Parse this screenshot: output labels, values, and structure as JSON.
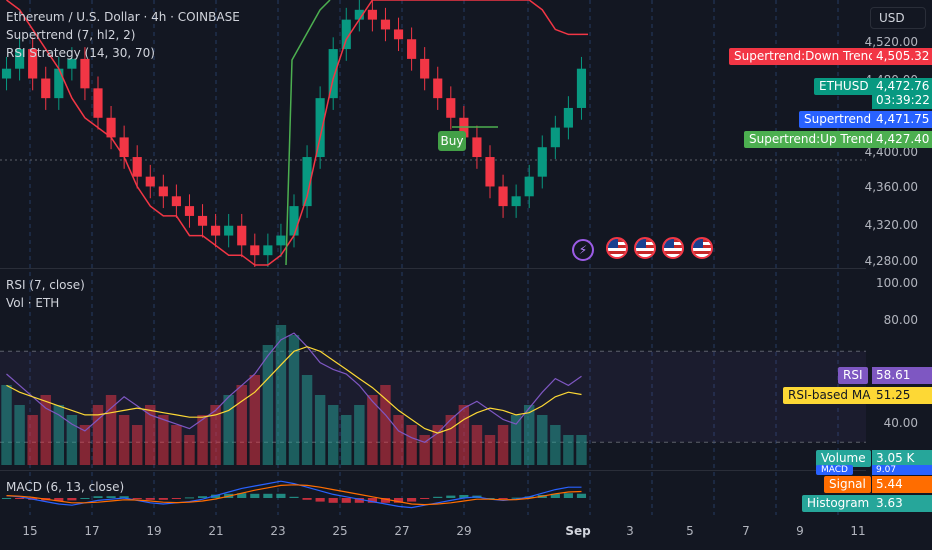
{
  "header": {
    "symbol_line": "Ethereum / U.S. Dollar · 4h · COINBASE",
    "currency_button": "USD"
  },
  "main_pane": {
    "indicators": [
      "Supertrend (7, hl2, 2)",
      "RSI Strategy (14, 30, 70)"
    ],
    "price_axis": [
      "4,520.00",
      "4,480.00",
      "4,400.00",
      "4,360.00",
      "4,320.00",
      "4,280.00"
    ],
    "badges": {
      "supertrend_down": {
        "label": "Supertrend:Down Trend",
        "value": "4,505.32",
        "color": "#f23645"
      },
      "ethusd": {
        "label": "ETHUSD",
        "value": "4,472.76",
        "timer": "03:39:22",
        "color": "#089981"
      },
      "supertrend": {
        "label": "Supertrend",
        "value": "4,471.75",
        "color": "#2962ff"
      },
      "supertrend_up": {
        "label": "Supertrend:Up Trend",
        "value": "4,427.40",
        "color": "#4caf50"
      }
    },
    "buy_label": "Buy"
  },
  "rsi_pane": {
    "indicators": [
      "RSI (7, close)",
      "Vol · ETH"
    ],
    "axis": [
      "100.00",
      "80.00",
      "40.00"
    ],
    "badges": {
      "rsi": {
        "label": "RSI",
        "value": "58.61",
        "color": "#7e57c2"
      },
      "rsi_ma": {
        "label": "RSI-based MA",
        "value": "51.25",
        "color": "#fdd835"
      },
      "volume": {
        "label": "Volume",
        "value": "3.05 K",
        "color": "#26a69a"
      }
    }
  },
  "macd_pane": {
    "indicator": "MACD (6, 13, close)",
    "badges": {
      "macd": {
        "label": "MACD",
        "value": "9.07",
        "color": "#2962ff"
      },
      "signal": {
        "label": "Signal",
        "value": "5.44",
        "color": "#ff6d00"
      },
      "histogram": {
        "label": "Histogram",
        "value": "3.63",
        "color": "#26a69a"
      }
    }
  },
  "x_axis": [
    "15",
    "17",
    "19",
    "21",
    "23",
    "25",
    "27",
    "29",
    "Sep",
    "3",
    "5",
    "7",
    "9",
    "11"
  ],
  "event_icons": [
    "flash-icon",
    "us-flag-icon",
    "us-flag-icon",
    "us-flag-icon",
    "us-flag-icon"
  ],
  "chart_data": {
    "type": "line",
    "title": "Ethereum / U.S. Dollar · 4h · COINBASE",
    "ylim": [
      4270,
      4540
    ],
    "series": [
      {
        "name": "Supertrend",
        "values": [
          4540,
          4530,
          4510,
          4490,
          4470,
          4440,
          4420,
          4410,
          4400,
          4380,
          4350,
          4330,
          4320,
          4320,
          4300,
          4300,
          4290,
          4280,
          4280,
          4270,
          4270,
          4280,
          4300,
          4340,
          4400,
          4460,
          4500,
          4520,
          4540,
          4540,
          4540,
          4540,
          4540,
          4540,
          4540,
          4540,
          4540,
          4540,
          4540,
          4540,
          4540,
          4530,
          4510,
          4505,
          4505
        ]
      }
    ],
    "candles_close": [
      4470,
      4490,
      4460,
      4440,
      4470,
      4480,
      4450,
      4420,
      4400,
      4380,
      4360,
      4350,
      4340,
      4330,
      4320,
      4310,
      4300,
      4310,
      4290,
      4280,
      4290,
      4300,
      4330,
      4380,
      4440,
      4490,
      4520,
      4530,
      4520,
      4510,
      4500,
      4480,
      4460,
      4440,
      4420,
      4400,
      4380,
      4350,
      4330,
      4340,
      4360,
      4390,
      4410,
      4430,
      4470
    ],
    "rsi": [
      60,
      55,
      50,
      45,
      42,
      38,
      35,
      40,
      45,
      50,
      46,
      42,
      40,
      38,
      36,
      40,
      44,
      50,
      55,
      60,
      68,
      75,
      78,
      72,
      65,
      62,
      60,
      55,
      48,
      42,
      35,
      32,
      30,
      34,
      40,
      45,
      48,
      44,
      40,
      38,
      45,
      52,
      58,
      55,
      59
    ],
    "rsi_ma": [
      55,
      52,
      50,
      48,
      46,
      44,
      42,
      42,
      43,
      44,
      45,
      44,
      43,
      42,
      41,
      41,
      42,
      44,
      48,
      52,
      58,
      64,
      70,
      72,
      70,
      66,
      62,
      58,
      54,
      49,
      44,
      40,
      36,
      34,
      36,
      40,
      43,
      45,
      44,
      42,
      43,
      46,
      50,
      52,
      51
    ],
    "volume_k": [
      8,
      6,
      5,
      7,
      6,
      5,
      4,
      6,
      7,
      5,
      4,
      6,
      5,
      4,
      3,
      5,
      6,
      7,
      8,
      9,
      12,
      14,
      13,
      9,
      7,
      6,
      5,
      6,
      7,
      8,
      5,
      4,
      3,
      4,
      5,
      6,
      4,
      3,
      4,
      5,
      6,
      5,
      4,
      3,
      3
    ],
    "macd": [
      2,
      1,
      -1,
      -3,
      -5,
      -6,
      -4,
      -2,
      -1,
      0,
      -2,
      -4,
      -5,
      -4,
      -3,
      -1,
      2,
      5,
      8,
      10,
      12,
      14,
      12,
      9,
      6,
      3,
      1,
      -1,
      -3,
      -5,
      -7,
      -8,
      -6,
      -4,
      -2,
      0,
      1,
      -1,
      -2,
      -1,
      1,
      4,
      7,
      9,
      9
    ],
    "signal": [
      2,
      1.5,
      0.5,
      -1,
      -2.5,
      -4,
      -4,
      -3.5,
      -2.5,
      -1.5,
      -1.7,
      -2.5,
      -3.5,
      -3.8,
      -3.5,
      -2.5,
      -0.8,
      1.5,
      4,
      6.5,
      8.5,
      10.5,
      11,
      10.5,
      9,
      7,
      5,
      3,
      1,
      -1,
      -3,
      -5,
      -5.5,
      -5,
      -4,
      -2.5,
      -1,
      -1,
      -1.5,
      -1.3,
      -0.3,
      1.5,
      3.5,
      5,
      5.44
    ],
    "x_tick_labels": [
      "15",
      "17",
      "19",
      "21",
      "23",
      "25",
      "27",
      "29",
      "Sep",
      "3",
      "5",
      "7",
      "9",
      "11"
    ]
  }
}
